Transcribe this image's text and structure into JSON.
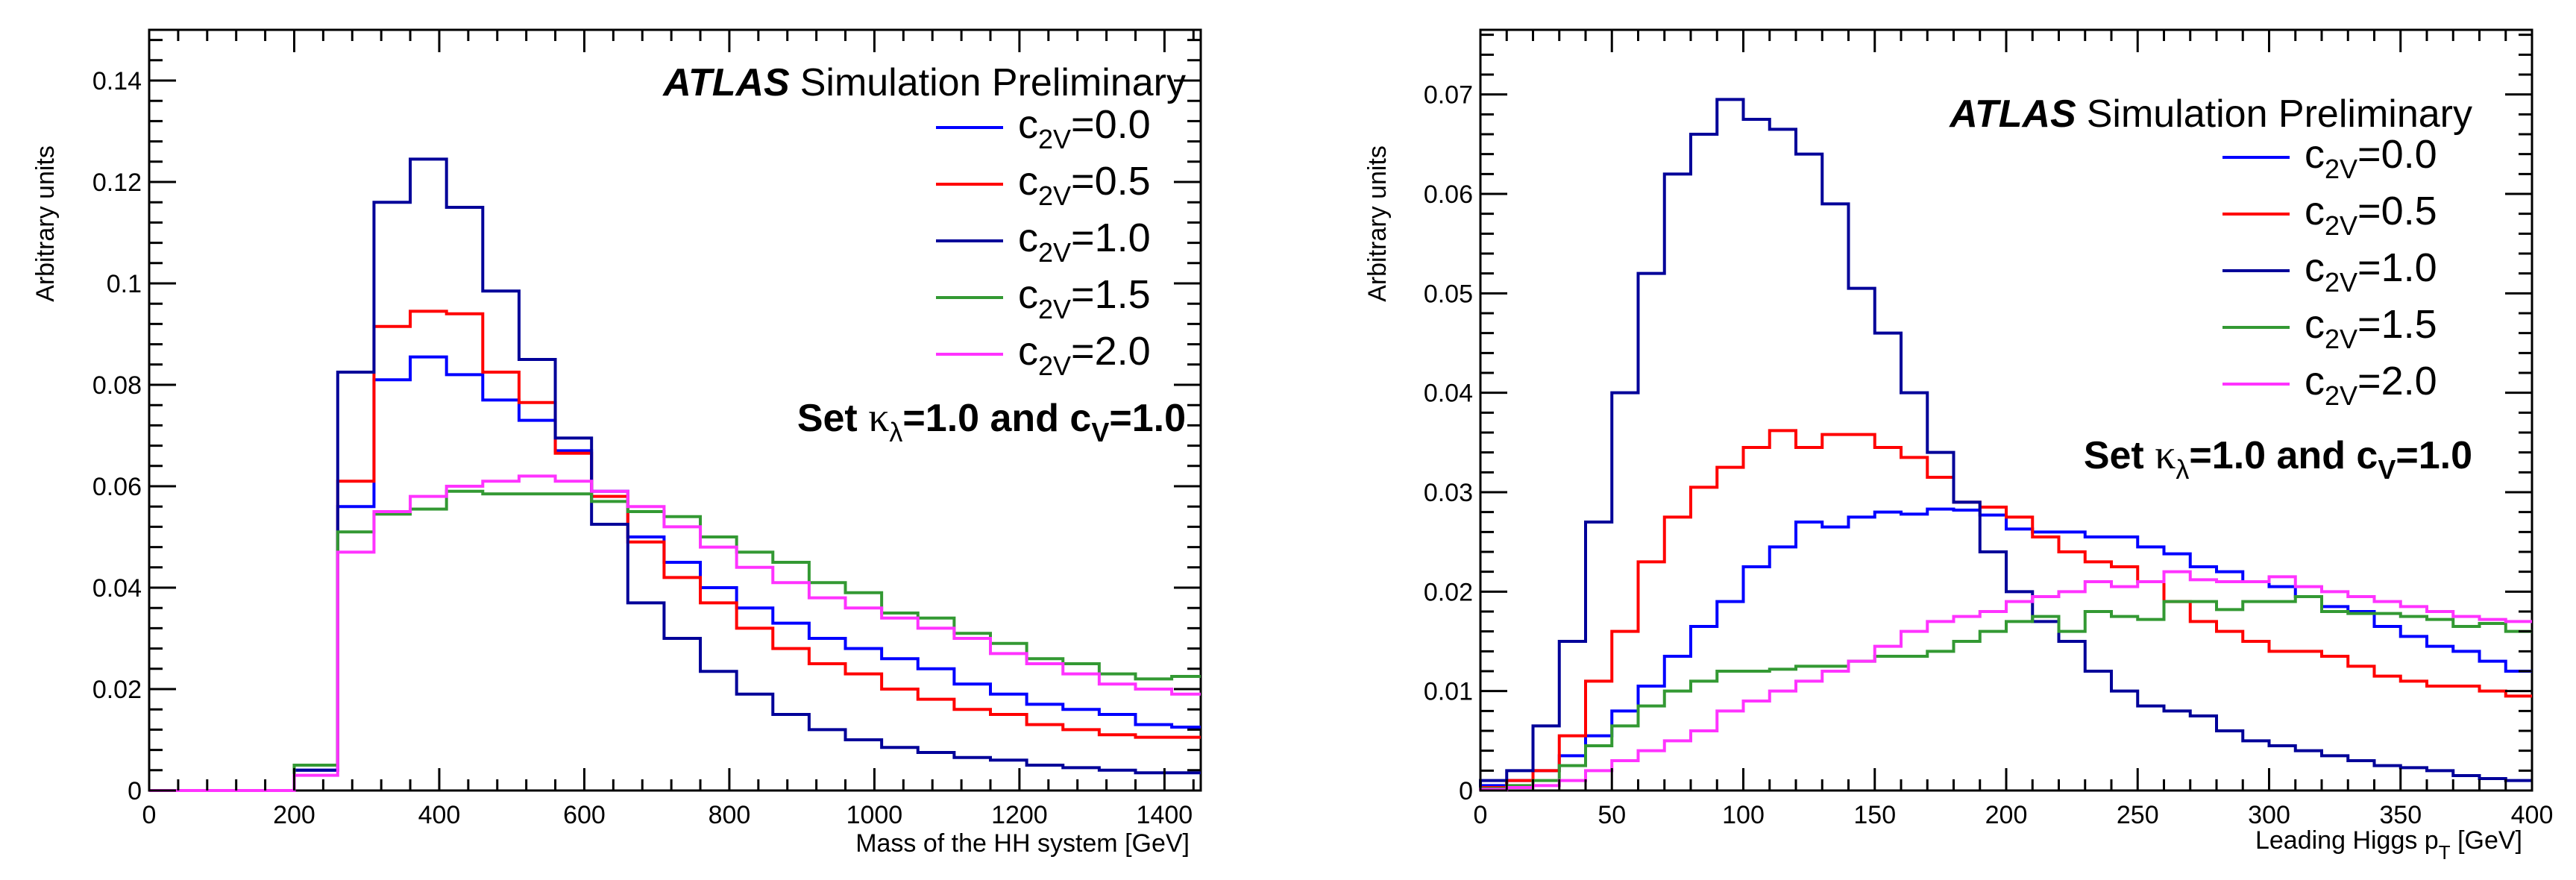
{
  "chart_data": [
    {
      "type": "histogram",
      "xlabel": "Mass of the HH system [GeV]",
      "ylabel": "Arbitrary units",
      "xlim": [
        0,
        1450
      ],
      "ylim": [
        0,
        0.15
      ],
      "x_ticks": [
        "0",
        "200",
        "400",
        "600",
        "800",
        "1000",
        "1200",
        "1400"
      ],
      "y_ticks": [
        "0",
        "0.02",
        "0.04",
        "0.06",
        "0.08",
        "0.1",
        "0.12",
        "0.14"
      ],
      "atlas_label": "ATLAS",
      "atlas_sub": "Simulation Preliminary",
      "set_text": {
        "prefix": "Set ",
        "kappa": "κ",
        "lambda_sub": "λ",
        "mid": "=1.0 and c",
        "v_sub": "V",
        "suffix": "=1.0"
      },
      "bin_edges": [
        0,
        50,
        100,
        150,
        200,
        260,
        310,
        360,
        410,
        460,
        510,
        560,
        610,
        660,
        710,
        760,
        810,
        860,
        910,
        960,
        1010,
        1060,
        1110,
        1160,
        1210,
        1260,
        1310,
        1360,
        1410,
        1450
      ],
      "series": [
        {
          "name_pre": "c",
          "name_sub": "2V",
          "name_post": "=0.0",
          "color": "#0000ff",
          "values": [
            0,
            0,
            0,
            0,
            0.004,
            0.056,
            0.081,
            0.0855,
            0.082,
            0.077,
            0.073,
            0.067,
            0.059,
            0.05,
            0.045,
            0.04,
            0.036,
            0.033,
            0.03,
            0.028,
            0.026,
            0.024,
            0.021,
            0.019,
            0.017,
            0.016,
            0.015,
            0.013,
            0.0125
          ]
        },
        {
          "name_pre": "c",
          "name_sub": "2V",
          "name_post": "=0.5",
          "color": "#ff0000",
          "values": [
            0,
            0,
            0,
            0,
            0.005,
            0.061,
            0.0915,
            0.0945,
            0.094,
            0.0825,
            0.0765,
            0.0665,
            0.058,
            0.049,
            0.042,
            0.037,
            0.032,
            0.028,
            0.025,
            0.023,
            0.02,
            0.018,
            0.016,
            0.015,
            0.013,
            0.012,
            0.011,
            0.0105,
            0.0105
          ]
        },
        {
          "name_pre": "c",
          "name_sub": "2V",
          "name_post": "=1.0",
          "color": "#000099",
          "values": [
            0,
            0,
            0,
            0,
            0.004,
            0.0825,
            0.116,
            0.1245,
            0.115,
            0.0985,
            0.085,
            0.0695,
            0.0525,
            0.037,
            0.03,
            0.0235,
            0.019,
            0.015,
            0.012,
            0.01,
            0.0085,
            0.0075,
            0.0065,
            0.006,
            0.005,
            0.0045,
            0.004,
            0.0035,
            0.0035
          ]
        },
        {
          "name_pre": "c",
          "name_sub": "2V",
          "name_post": "=1.5",
          "color": "#339933",
          "values": [
            0,
            0,
            0,
            0,
            0.005,
            0.051,
            0.0545,
            0.0555,
            0.059,
            0.0585,
            0.0585,
            0.0585,
            0.057,
            0.055,
            0.054,
            0.05,
            0.047,
            0.045,
            0.041,
            0.039,
            0.035,
            0.034,
            0.031,
            0.029,
            0.026,
            0.025,
            0.023,
            0.022,
            0.0225
          ]
        },
        {
          "name_pre": "c",
          "name_sub": "2V",
          "name_post": "=2.0",
          "color": "#ff33ff",
          "values": [
            0,
            0,
            0,
            0,
            0.003,
            0.047,
            0.055,
            0.058,
            0.06,
            0.061,
            0.062,
            0.061,
            0.059,
            0.056,
            0.052,
            0.048,
            0.044,
            0.041,
            0.038,
            0.036,
            0.034,
            0.032,
            0.03,
            0.027,
            0.025,
            0.023,
            0.021,
            0.02,
            0.019
          ]
        }
      ]
    },
    {
      "type": "histogram",
      "xlabel_pre": "Leading Higgs p",
      "xlabel_sub": "T",
      "xlabel_post": " [GeV]",
      "ylabel": "Arbitrary units",
      "xlim": [
        0,
        400
      ],
      "ylim": [
        0,
        0.0765
      ],
      "x_ticks": [
        "0",
        "50",
        "100",
        "150",
        "200",
        "250",
        "300",
        "350",
        "400"
      ],
      "y_ticks": [
        "0",
        "0.01",
        "0.02",
        "0.03",
        "0.04",
        "0.05",
        "0.06",
        "0.07"
      ],
      "atlas_label": "ATLAS",
      "atlas_sub": "Simulation Preliminary",
      "set_text": {
        "prefix": "Set ",
        "kappa": "κ",
        "lambda_sub": "λ",
        "mid": "=1.0 and c",
        "v_sub": "V",
        "suffix": "=1.0"
      },
      "bin_width": 10,
      "series": [
        {
          "name_pre": "c",
          "name_sub": "2V",
          "name_post": "=0.0",
          "color": "#0000ff",
          "values": [
            0.0005,
            0.001,
            0.002,
            0.0035,
            0.0055,
            0.008,
            0.0105,
            0.0135,
            0.0165,
            0.019,
            0.0225,
            0.0245,
            0.027,
            0.0265,
            0.0275,
            0.028,
            0.0278,
            0.0283,
            0.0282,
            0.0277,
            0.0263,
            0.026,
            0.026,
            0.0255,
            0.0255,
            0.0245,
            0.0238,
            0.0225,
            0.022,
            0.021,
            0.0205,
            0.0195,
            0.0185,
            0.018,
            0.0165,
            0.0155,
            0.0145,
            0.014,
            0.013,
            0.012
          ]
        },
        {
          "name_pre": "c",
          "name_sub": "2V",
          "name_post": "=0.5",
          "color": "#ff0000",
          "values": [
            0.0003,
            0.001,
            0.002,
            0.0055,
            0.011,
            0.016,
            0.023,
            0.0275,
            0.0305,
            0.0325,
            0.0345,
            0.0362,
            0.0345,
            0.0358,
            0.0358,
            0.0345,
            0.0335,
            0.0315,
            0.029,
            0.0285,
            0.0275,
            0.0255,
            0.024,
            0.023,
            0.0225,
            0.021,
            0.019,
            0.017,
            0.016,
            0.015,
            0.014,
            0.014,
            0.0135,
            0.0125,
            0.0115,
            0.011,
            0.0105,
            0.0105,
            0.01,
            0.0095
          ]
        },
        {
          "name_pre": "c",
          "name_sub": "2V",
          "name_post": "=1.0",
          "color": "#000099",
          "values": [
            0.001,
            0.002,
            0.0065,
            0.015,
            0.027,
            0.04,
            0.052,
            0.062,
            0.066,
            0.0695,
            0.0675,
            0.0665,
            0.064,
            0.059,
            0.0505,
            0.046,
            0.04,
            0.034,
            0.029,
            0.024,
            0.02,
            0.017,
            0.015,
            0.012,
            0.01,
            0.0085,
            0.008,
            0.0075,
            0.006,
            0.005,
            0.0045,
            0.004,
            0.0035,
            0.003,
            0.0025,
            0.0023,
            0.002,
            0.0015,
            0.0012,
            0.001
          ]
        },
        {
          "name_pre": "c",
          "name_sub": "2V",
          "name_post": "=1.5",
          "color": "#339933",
          "values": [
            0.0002,
            0.0005,
            0.001,
            0.0025,
            0.0045,
            0.0065,
            0.0085,
            0.01,
            0.011,
            0.012,
            0.012,
            0.0122,
            0.0125,
            0.0125,
            0.013,
            0.0135,
            0.0135,
            0.014,
            0.015,
            0.016,
            0.017,
            0.0175,
            0.016,
            0.018,
            0.0175,
            0.0172,
            0.019,
            0.019,
            0.0182,
            0.019,
            0.019,
            0.0195,
            0.018,
            0.0178,
            0.0178,
            0.0175,
            0.0172,
            0.0165,
            0.0168,
            0.016
          ]
        },
        {
          "name_pre": "c",
          "name_sub": "2V",
          "name_post": "=2.0",
          "color": "#ff33ff",
          "values": [
            0.0001,
            0.0003,
            0.0005,
            0.001,
            0.002,
            0.003,
            0.004,
            0.005,
            0.006,
            0.008,
            0.009,
            0.01,
            0.011,
            0.012,
            0.013,
            0.0145,
            0.016,
            0.017,
            0.0175,
            0.018,
            0.019,
            0.0195,
            0.02,
            0.021,
            0.0205,
            0.021,
            0.022,
            0.0212,
            0.021,
            0.021,
            0.0215,
            0.0205,
            0.02,
            0.0195,
            0.019,
            0.0185,
            0.018,
            0.0175,
            0.0172,
            0.017
          ]
        }
      ]
    }
  ]
}
